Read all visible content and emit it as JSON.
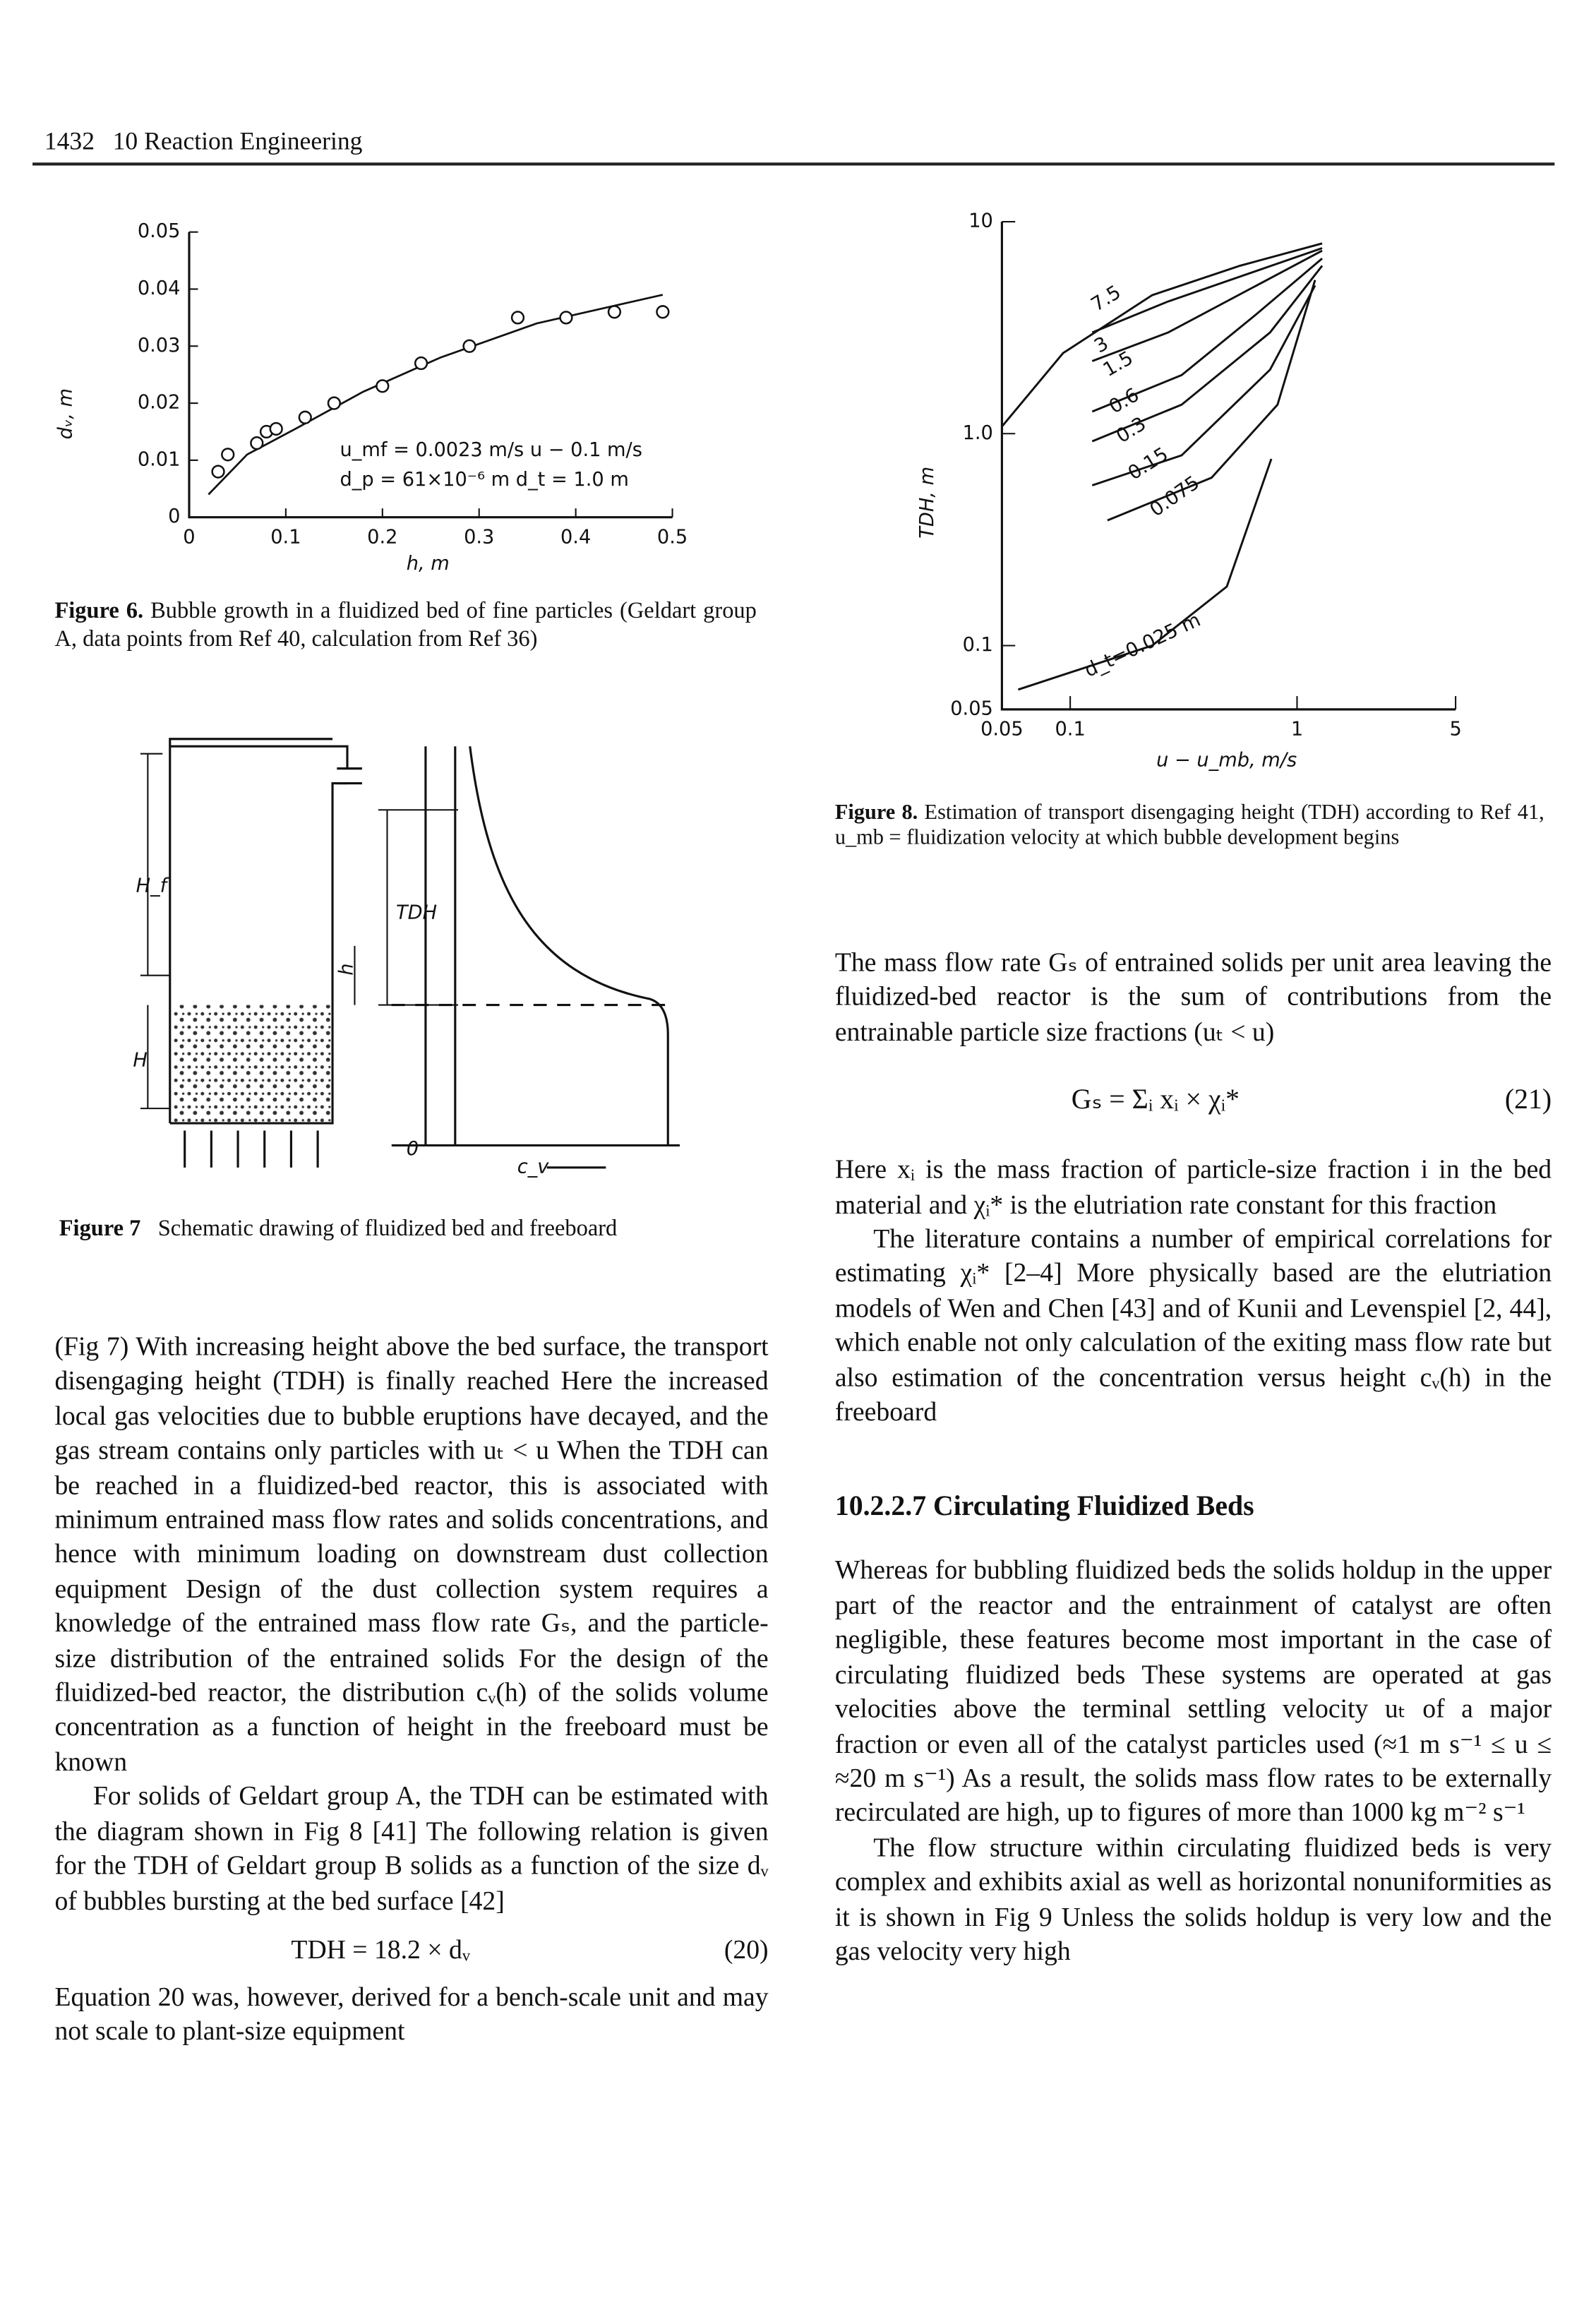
{
  "header": {
    "page": "1432",
    "section": "10 Reaction Engineering"
  },
  "figure_6": {
    "type": "scatter",
    "xlabel": "h, m",
    "ylabel": "dᵥ, m",
    "x": [
      0.03,
      0.04,
      0.07,
      0.08,
      0.09,
      0.12,
      0.15,
      0.2,
      0.24,
      0.29,
      0.34,
      0.39,
      0.44,
      0.49
    ],
    "values": [
      0.008,
      0.011,
      0.013,
      0.015,
      0.0155,
      0.0175,
      0.02,
      0.023,
      0.027,
      0.03,
      0.035,
      0.035,
      0.036,
      0.036
    ],
    "curve": {
      "x": [
        0.02,
        0.06,
        0.11,
        0.18,
        0.26,
        0.36,
        0.49
      ],
      "values": [
        0.004,
        0.011,
        0.0155,
        0.022,
        0.028,
        0.034,
        0.039
      ]
    },
    "xlim": [
      0,
      0.5
    ],
    "ylim": [
      0,
      0.05
    ],
    "xticks": [
      0,
      0.1,
      0.2,
      0.3,
      0.4,
      0.5
    ],
    "yticks": [
      0,
      0.01,
      0.02,
      0.03,
      0.04,
      0.05
    ],
    "annotations": [
      "u_mf = 0.0023 m/s   u − 0.1 m/s",
      "d_p = 61×10⁻⁶ m   d_t = 1.0 m"
    ],
    "caption": {
      "label": "Figure 6.",
      "text": "Bubble growth in a fluidized bed of fine particles (Geldart group A, data points from Ref 40, calculation from Ref 36)"
    }
  },
  "figure_7": {
    "labels": {
      "hf": "H_f",
      "h_bed": "H",
      "h": "h",
      "tdh": "TDH",
      "zero": "0",
      "cv": "c_v"
    },
    "caption": {
      "label": "Figure 7",
      "text": "Schematic drawing of fluidized bed and freeboard"
    }
  },
  "figure_8": {
    "type": "line",
    "log_scale": true,
    "xlabel": "u − u_mb, m/s",
    "ylabel": "TDH, m",
    "xlim": [
      0.05,
      5
    ],
    "ylim": [
      0.05,
      10
    ],
    "xticks": [
      0.05,
      0.1,
      1,
      5
    ],
    "yticks": [
      0.05,
      0.1,
      {
        "value": 1,
        "label": "1.0"
      },
      10
    ],
    "series": [
      {
        "name": "7.5",
        "x": [
          0.05,
          0.093,
          0.23,
          0.56,
          1.29
        ],
        "values": [
          1.08,
          2.4,
          4.5,
          6.2,
          7.9
        ]
      },
      {
        "name": "3",
        "x": [
          0.125,
          0.27,
          1.29
        ],
        "values": [
          3.0,
          4.2,
          7.5
        ]
      },
      {
        "name": "1.5",
        "x": [
          0.125,
          0.27,
          1.29
        ],
        "values": [
          2.2,
          3.0,
          7.3
        ]
      },
      {
        "name": "0.6",
        "x": [
          0.125,
          0.31,
          0.65,
          1.29
        ],
        "values": [
          1.27,
          1.89,
          3.6,
          6.7
        ]
      },
      {
        "name": "0.3",
        "x": [
          0.125,
          0.31,
          0.76,
          1.29
        ],
        "values": [
          0.92,
          1.37,
          3.0,
          6.2
        ]
      },
      {
        "name": "0.15",
        "x": [
          0.125,
          0.31,
          0.76,
          1.2
        ],
        "values": [
          0.57,
          0.79,
          2.0,
          5.0
        ]
      },
      {
        "name": "0.075",
        "x": [
          0.146,
          0.42,
          0.82,
          1.2
        ],
        "values": [
          0.39,
          0.62,
          1.37,
          5.3
        ]
      },
      {
        "name": "d_t=0.025 m",
        "x": [
          0.059,
          0.23,
          0.49,
          0.77
        ],
        "values": [
          0.062,
          0.1,
          0.19,
          0.76
        ]
      }
    ],
    "caption": {
      "label": "Figure 8.",
      "text": "Estimation of transport disengaging height (TDH) according to Ref 41, u_mb = fluidization velocity at which bubble development begins"
    }
  },
  "left_column": {
    "p1": "(Fig 7) With increasing height above the bed surface, the transport disengaging height (TDH) is finally reached Here the increased local gas velocities due to bubble eruptions have decayed, and the gas stream contains only particles with uₜ < u When the TDH can be reached in a fluidized-bed reactor, this is associated with minimum entrained mass flow rates and solids concentrations, and hence with minimum loading on downstream dust collection equipment Design of the dust collection system requires a knowledge of the entrained mass flow rate Gₛ, and the particle-size distribution of the entrained solids For the design of the fluidized-bed reactor, the distribution cᵥ(h) of the solids volume concentration as a function of height in the freeboard must be known",
    "p2": "For solids of Geldart group A, the TDH can be estimated with the diagram shown in Fig 8 [41] The following relation is given for the TDH of Geldart group B solids as a function of the size dᵥ of bubbles bursting at the bed surface [42]",
    "eq20": {
      "formula": "TDH = 18.2 × dᵥ",
      "number": "(20)"
    },
    "p3": "Equation 20 was, however, derived for a bench-scale unit and may not scale to plant-size equipment"
  },
  "right_column": {
    "p1": "The mass flow rate Gₛ of entrained solids per unit area leaving the fluidized-bed reactor is the sum of contributions from the entrainable particle size fractions (uₜ < u)",
    "eq21": {
      "formula": "Gₛ = Σᵢ xᵢ × χᵢ*",
      "number": "(21)"
    },
    "p2": "Here xᵢ is the mass fraction of particle-size fraction i in the bed material and χᵢ* is the elutriation rate constant for this fraction",
    "p3": "The literature contains a number of empirical correlations for estimating χᵢ* [2–4] More physically based are the elutriation models of Wen and Chen [43] and of Kunii and Levenspiel [2, 44], which enable not only calculation of the exiting mass flow rate but also estimation of the concentration versus height cᵥ(h) in the freeboard",
    "heading": "10.2.2.7 Circulating Fluidized Beds",
    "p4": "Whereas for bubbling fluidized beds the solids holdup in the upper part of the reactor and the entrainment of catalyst are often negligible, these features become most important in the case of circulating fluidized beds These systems are operated at gas velocities above the terminal settling velocity uₜ of a major fraction or even all of the catalyst particles used (≈1 m s⁻¹ ≤ u ≤ ≈20 m s⁻¹) As a result, the solids mass flow rates to be externally recirculated are high, up to figures of more than 1000 kg m⁻² s⁻¹",
    "p5": "The flow structure within circulating fluidized beds is very complex and exhibits axial as well as horizontal nonuniformities as it is shown in Fig 9 Unless the solids holdup is very low and the gas velocity very high"
  }
}
